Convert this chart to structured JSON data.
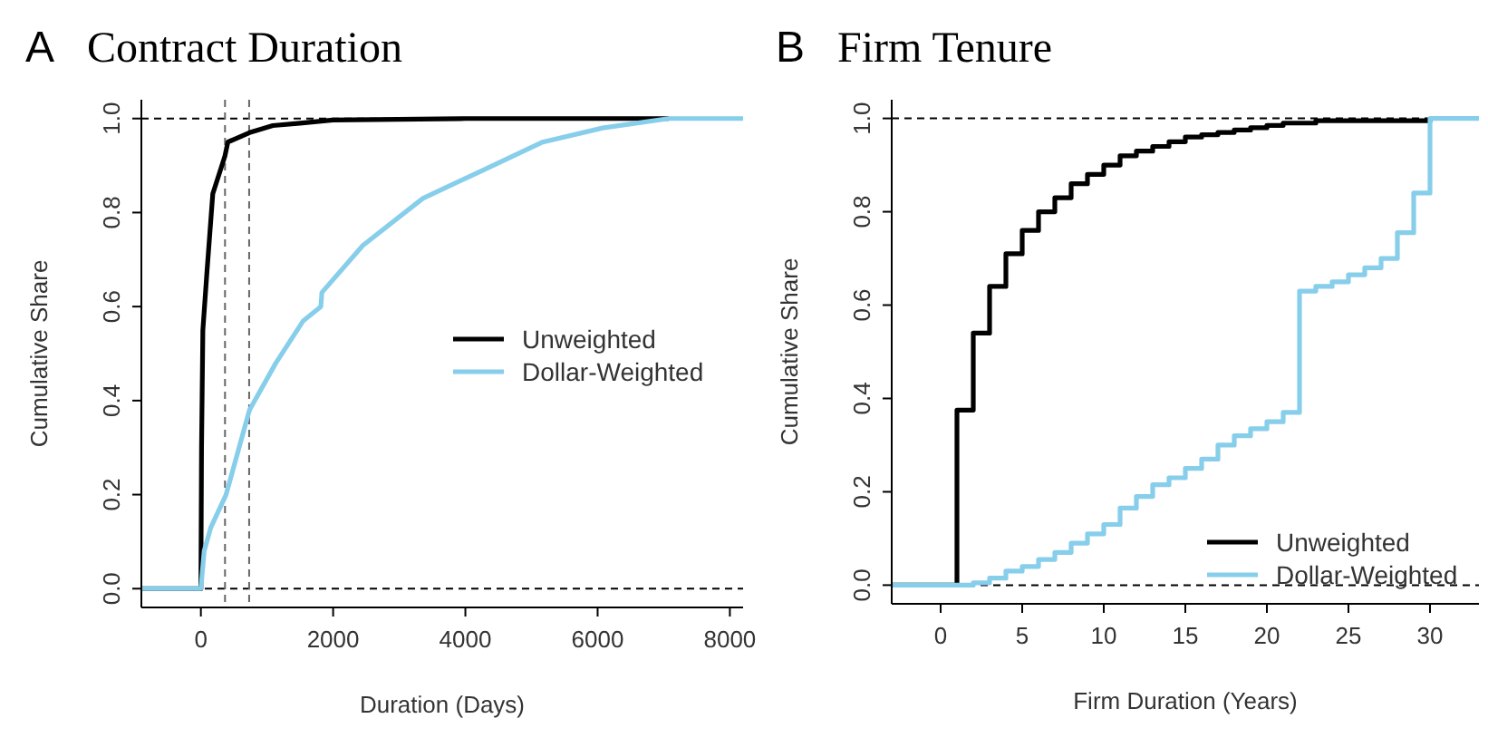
{
  "chart_data": [
    {
      "type": "line",
      "title": "Contract Duration",
      "annotations": [
        "A"
      ],
      "xlabel": "Duration (Days)",
      "ylabel": "Cumulative Share",
      "xlim": [
        -900,
        8200
      ],
      "ylim": [
        -0.04,
        1.04
      ],
      "xticks": [
        0,
        2000,
        4000,
        6000,
        8000
      ],
      "yticks": [
        {
          "value": 0,
          "label": "0.0"
        },
        {
          "value": 0.2,
          "label": "0.2"
        },
        {
          "value": 0.4,
          "label": "0.4"
        },
        {
          "value": 0.6,
          "label": "0.6"
        },
        {
          "value": 0.8,
          "label": "0.8"
        },
        {
          "value": 1,
          "label": "1.0"
        }
      ],
      "legend": "right",
      "grid": false,
      "ref_lines": [
        {
          "axis": "y",
          "value": 0,
          "color": "#000000",
          "line_style": "dashed"
        },
        {
          "axis": "y",
          "value": 1,
          "color": "#000000",
          "line_style": "dashed"
        },
        {
          "axis": "x",
          "value": 365,
          "color": "#666666",
          "line_style": "dashed"
        },
        {
          "axis": "x",
          "value": 730,
          "color": "#666666",
          "line_style": "dashed"
        }
      ],
      "series": [
        {
          "name": "Unweighted",
          "color": "#000000",
          "x": [
            -900,
            0,
            10,
            30,
            90,
            180,
            363,
            408,
            735,
            1088,
            1500,
            1995,
            4000,
            7075
          ],
          "values": [
            0,
            0,
            0.3,
            0.55,
            0.67,
            0.84,
            0.92,
            0.95,
            0.97,
            0.985,
            0.99,
            0.997,
            1,
            1
          ]
        },
        {
          "name": "Dollar-Weighted",
          "color": "#87ceeb",
          "x": [
            -900,
            0,
            50,
            150,
            381,
            735,
            1134,
            1550,
            1814,
            1830,
            2449,
            3356,
            4263,
            5170,
            6077,
            7075,
            8200
          ],
          "values": [
            0,
            0,
            0.08,
            0.13,
            0.2,
            0.38,
            0.48,
            0.57,
            0.6,
            0.63,
            0.73,
            0.83,
            0.89,
            0.95,
            0.98,
            1,
            1
          ]
        }
      ]
    },
    {
      "type": "step",
      "title": "Firm Tenure",
      "annotations": [
        "B"
      ],
      "xlabel": "Firm Duration (Years)",
      "ylabel": "Cumulative Share",
      "xlim": [
        -3,
        33
      ],
      "ylim": [
        -0.04,
        1.04
      ],
      "xticks": [
        0,
        5,
        10,
        15,
        20,
        25,
        30
      ],
      "yticks": [
        {
          "value": 0,
          "label": "0.0"
        },
        {
          "value": 0.2,
          "label": "0.2"
        },
        {
          "value": 0.4,
          "label": "0.4"
        },
        {
          "value": 0.6,
          "label": "0.6"
        },
        {
          "value": 0.8,
          "label": "0.8"
        },
        {
          "value": 1,
          "label": "1.0"
        }
      ],
      "legend": "bottom right",
      "grid": false,
      "ref_lines": [
        {
          "axis": "y",
          "value": 0,
          "color": "#000000",
          "line_style": "dashed"
        },
        {
          "axis": "y",
          "value": 1,
          "color": "#000000",
          "line_style": "dashed"
        }
      ],
      "series": [
        {
          "name": "Unweighted",
          "color": "#000000",
          "x": [
            -3,
            0,
            1,
            2,
            3,
            4,
            5,
            6,
            7,
            8,
            9,
            10,
            11,
            12,
            13,
            14,
            15,
            16,
            17,
            18,
            19,
            20,
            21,
            22,
            23,
            24,
            25,
            26,
            27,
            28,
            29,
            30
          ],
          "values": [
            0,
            0,
            0.375,
            0.54,
            0.64,
            0.71,
            0.76,
            0.8,
            0.83,
            0.86,
            0.88,
            0.9,
            0.92,
            0.93,
            0.94,
            0.95,
            0.96,
            0.965,
            0.97,
            0.975,
            0.98,
            0.985,
            0.99,
            0.99,
            0.995,
            0.995,
            0.995,
            0.995,
            0.995,
            0.995,
            0.995,
            1
          ]
        },
        {
          "name": "Dollar-Weighted",
          "color": "#87ceeb",
          "x": [
            -3,
            0,
            1,
            2,
            3,
            4,
            5,
            6,
            7,
            8,
            9,
            10,
            11,
            12,
            13,
            14,
            15,
            16,
            17,
            18,
            19,
            20,
            21,
            22,
            23,
            24,
            25,
            26,
            27,
            28,
            29,
            30,
            33
          ],
          "values": [
            0,
            0,
            0,
            0.005,
            0.015,
            0.03,
            0.04,
            0.055,
            0.07,
            0.09,
            0.11,
            0.13,
            0.165,
            0.19,
            0.215,
            0.23,
            0.25,
            0.27,
            0.3,
            0.32,
            0.335,
            0.35,
            0.37,
            0.63,
            0.64,
            0.65,
            0.665,
            0.68,
            0.7,
            0.755,
            0.84,
            1,
            1
          ]
        }
      ]
    }
  ]
}
